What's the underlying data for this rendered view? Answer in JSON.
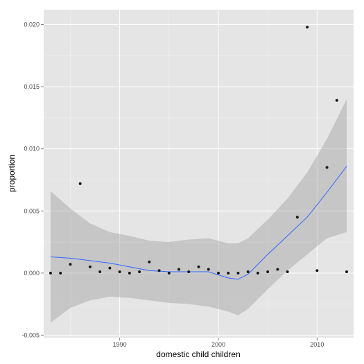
{
  "chart_data": {
    "type": "scatter",
    "xlabel": "domestic child children",
    "ylabel": "proportion",
    "xlim": [
      1982.3,
      2013.7
    ],
    "ylim": [
      -0.0052,
      0.0212
    ],
    "x_ticks": [
      1990,
      2000,
      2010
    ],
    "x_tick_labels": [
      "1990",
      "2000",
      "2010"
    ],
    "y_ticks": [
      -0.005,
      0,
      0.005,
      0.01,
      0.015,
      0.02
    ],
    "y_tick_labels": [
      "-0.005",
      "0.000",
      "0.005",
      "0.010",
      "0.015",
      "0.020"
    ],
    "grid": true,
    "points": {
      "x": [
        1983,
        1984,
        1985,
        1986,
        1987,
        1988,
        1989,
        1990,
        1991,
        1992,
        1993,
        1994,
        1995,
        1996,
        1997,
        1998,
        1999,
        2000,
        2001,
        2002,
        2003,
        2004,
        2005,
        2006,
        2007,
        2008,
        2009,
        2010,
        2011,
        2012,
        2013
      ],
      "y": [
        0.0,
        0.0,
        0.0007,
        0.0072,
        0.0005,
        0.0001,
        0.0004,
        0.0001,
        0.0,
        0.0001,
        0.0009,
        0.0002,
        0.0,
        0.0003,
        0.0001,
        0.0005,
        0.0003,
        0.0,
        0.0,
        0.0,
        0.0001,
        0.0,
        0.0001,
        0.0003,
        0.0001,
        0.0045,
        0.0198,
        0.0002,
        0.0085,
        0.0139,
        0.0001
      ]
    },
    "smooth": {
      "x": [
        1983,
        1985,
        1987,
        1989,
        1991,
        1993,
        1995,
        1997,
        1999,
        2001,
        2002,
        2003,
        2005,
        2007,
        2009,
        2011,
        2013
      ],
      "y": [
        0.0013,
        0.0012,
        0.001,
        0.0008,
        0.0005,
        0.0002,
        0.0001,
        0.0001,
        0.0001,
        -0.0004,
        -0.0005,
        -0.0001,
        0.0015,
        0.003,
        0.0045,
        0.0065,
        0.0086
      ],
      "lower": [
        -0.004,
        -0.0028,
        -0.0022,
        -0.0019,
        -0.002,
        -0.0022,
        -0.0024,
        -0.0025,
        -0.0027,
        -0.0031,
        -0.0034,
        -0.0029,
        -0.0013,
        0.0002,
        0.0015,
        0.0028,
        0.0033
      ],
      "upper": [
        0.0066,
        0.0052,
        0.004,
        0.0033,
        0.003,
        0.0026,
        0.0025,
        0.0027,
        0.0028,
        0.0024,
        0.0024,
        0.0028,
        0.0043,
        0.006,
        0.0081,
        0.0108,
        0.014
      ]
    },
    "colors": {
      "panel": "#e5e5e5",
      "grid_major": "#ffffff",
      "grid_minor": "#f2f2f2",
      "points": "#1a1a1a",
      "smooth_line": "#3366ff",
      "ribbon": "#999999"
    }
  }
}
